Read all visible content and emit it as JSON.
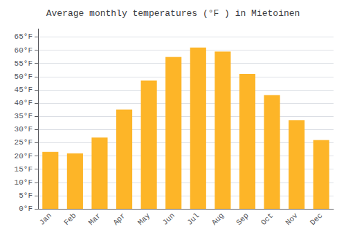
{
  "chart_data": {
    "type": "bar",
    "title": "Average monthly temperatures (°F ) in Mietoinen",
    "categories": [
      "Jan",
      "Feb",
      "Mar",
      "Apr",
      "May",
      "Jun",
      "Jul",
      "Aug",
      "Sep",
      "Oct",
      "Nov",
      "Dec"
    ],
    "values": [
      21.5,
      21.0,
      27.0,
      37.5,
      48.5,
      57.5,
      61.0,
      59.5,
      51.0,
      43.0,
      33.5,
      26.0
    ],
    "color": "#FDB528",
    "ylim": [
      0,
      68
    ],
    "yticks": [
      {
        "value": 0,
        "label": "0°F"
      },
      {
        "value": 5,
        "label": "5°F"
      },
      {
        "value": 10,
        "label": "10°F"
      },
      {
        "value": 15,
        "label": "15°F"
      },
      {
        "value": 20,
        "label": "20°F"
      },
      {
        "value": 25,
        "label": "25°F"
      },
      {
        "value": 30,
        "label": "30°F"
      },
      {
        "value": 35,
        "label": "35°F"
      },
      {
        "value": 40,
        "label": "40°F"
      },
      {
        "value": 45,
        "label": "45°F"
      },
      {
        "value": 50,
        "label": "50°F"
      },
      {
        "value": 55,
        "label": "55°F"
      },
      {
        "value": 60,
        "label": "60°F"
      },
      {
        "value": 65,
        "label": "65°F"
      }
    ],
    "grid": true
  }
}
